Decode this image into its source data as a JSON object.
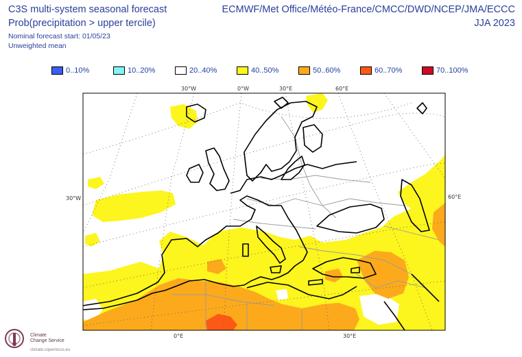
{
  "title": {
    "line1": "C3S multi-system seasonal forecast",
    "line2": "Prob(precipitation > upper tercile)",
    "line3": "Nominal forecast start: 01/05/23",
    "line4": "Unweighted mean",
    "centres": "ECMWF/Met Office/Météo-France/CMCC/DWD/NCEP/JMA/ECCC",
    "season": "JJA 2023"
  },
  "legend": [
    {
      "label": "0..10%",
      "color": "#3b5cf5"
    },
    {
      "label": "10..20%",
      "color": "#7ff5f5"
    },
    {
      "label": "20..40%",
      "color": "#ffffff"
    },
    {
      "label": "40..50%",
      "color": "#fcf51e"
    },
    {
      "label": "50..60%",
      "color": "#fcaa1c"
    },
    {
      "label": "60..70%",
      "color": "#fc5a14"
    },
    {
      "label": "70..100%",
      "color": "#cc0a28"
    }
  ],
  "axes": {
    "top": [
      "30°W",
      "0°W",
      "30°E",
      "60°E"
    ],
    "left": "30°W",
    "right": "60°E",
    "bottom": [
      "0°E",
      "30°E"
    ]
  },
  "logo": {
    "name_line1": "Climate",
    "name_line2": "Change Service",
    "url": "climate.copernicus.eu"
  },
  "colors": {
    "yellow": "#fcf51e",
    "orange": "#fcaa1c",
    "red_orange": "#fc5a14",
    "title": "#2a3f9b"
  }
}
